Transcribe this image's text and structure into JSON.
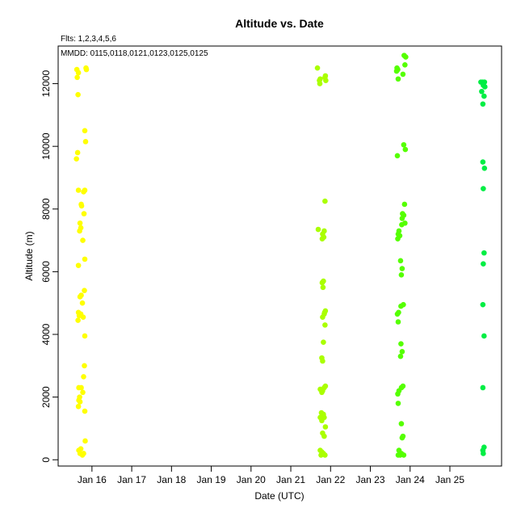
{
  "chart_data": {
    "type": "scatter",
    "title": "Altitude  vs. Date",
    "note_flts": "Flts: 1,2,3,4,5,6",
    "note_mmdd": "MMDD: 0115,0118,0121,0123,0125,0125",
    "xlabel": "Date (UTC)",
    "ylabel": "Altitude (m)",
    "x_unit": "day of January (UTC)",
    "xlim": [
      15.15,
      26.3
    ],
    "ylim": [
      -200,
      13200
    ],
    "x_ticks": [
      {
        "value": 16,
        "label": "Jan 16"
      },
      {
        "value": 17,
        "label": "Jan 17"
      },
      {
        "value": 18,
        "label": "Jan 18"
      },
      {
        "value": 19,
        "label": "Jan 19"
      },
      {
        "value": 20,
        "label": "Jan 20"
      },
      {
        "value": 21,
        "label": "Jan 21"
      },
      {
        "value": 22,
        "label": "Jan 22"
      },
      {
        "value": 23,
        "label": "Jan 23"
      },
      {
        "value": 24,
        "label": "Jan 24"
      },
      {
        "value": 25,
        "label": "Jan 25"
      }
    ],
    "y_ticks": [
      {
        "value": 0,
        "label": "0"
      },
      {
        "value": 2000,
        "label": "2000"
      },
      {
        "value": 4000,
        "label": "4000"
      },
      {
        "value": 6000,
        "label": "6000"
      },
      {
        "value": 8000,
        "label": "8000"
      },
      {
        "value": 10000,
        "label": "10000"
      },
      {
        "value": 12000,
        "label": "12000"
      }
    ],
    "grid": false,
    "series": [
      {
        "color": "#ffff00",
        "points": [
          [
            15.62,
            12450
          ],
          [
            15.66,
            12350
          ],
          [
            15.63,
            12200
          ],
          [
            15.85,
            12500
          ],
          [
            15.86,
            12450
          ],
          [
            15.65,
            11650
          ],
          [
            15.82,
            10500
          ],
          [
            15.84,
            10150
          ],
          [
            15.64,
            9800
          ],
          [
            15.61,
            9600
          ],
          [
            15.66,
            8600
          ],
          [
            15.79,
            8550
          ],
          [
            15.82,
            8600
          ],
          [
            15.73,
            8150
          ],
          [
            15.74,
            8100
          ],
          [
            15.8,
            7850
          ],
          [
            15.7,
            7550
          ],
          [
            15.72,
            7400
          ],
          [
            15.69,
            7300
          ],
          [
            15.77,
            7000
          ],
          [
            15.82,
            6400
          ],
          [
            15.66,
            6200
          ],
          [
            15.81,
            5400
          ],
          [
            15.73,
            5250
          ],
          [
            15.7,
            5200
          ],
          [
            15.76,
            5000
          ],
          [
            15.66,
            4700
          ],
          [
            15.72,
            4650
          ],
          [
            15.68,
            4600
          ],
          [
            15.78,
            4550
          ],
          [
            15.65,
            4450
          ],
          [
            15.82,
            3950
          ],
          [
            15.81,
            3000
          ],
          [
            15.79,
            2650
          ],
          [
            15.73,
            2300
          ],
          [
            15.67,
            2300
          ],
          [
            15.77,
            2150
          ],
          [
            15.69,
            2000
          ],
          [
            15.67,
            1900
          ],
          [
            15.7,
            1850
          ],
          [
            15.66,
            1700
          ],
          [
            15.82,
            1550
          ],
          [
            15.83,
            600
          ],
          [
            15.67,
            300
          ],
          [
            15.72,
            350
          ],
          [
            15.7,
            200
          ],
          [
            15.76,
            150
          ],
          [
            15.79,
            200
          ]
        ]
      },
      {
        "color": "#aaff00",
        "points": [
          [
            21.67,
            12500
          ],
          [
            21.74,
            12150
          ],
          [
            21.72,
            12100
          ],
          [
            21.73,
            12000
          ],
          [
            21.87,
            12250
          ],
          [
            21.86,
            12200
          ],
          [
            21.88,
            12100
          ],
          [
            21.86,
            8250
          ],
          [
            21.69,
            7350
          ],
          [
            21.84,
            7300
          ],
          [
            21.8,
            7200
          ],
          [
            21.83,
            7100
          ],
          [
            21.79,
            7050
          ],
          [
            21.82,
            5700
          ],
          [
            21.79,
            5650
          ],
          [
            21.81,
            5500
          ],
          [
            21.87,
            4750
          ],
          [
            21.85,
            4700
          ],
          [
            21.84,
            4650
          ],
          [
            21.8,
            4550
          ],
          [
            21.86,
            4300
          ],
          [
            21.82,
            3750
          ],
          [
            21.78,
            3250
          ],
          [
            21.8,
            3150
          ],
          [
            21.87,
            2350
          ],
          [
            21.84,
            2300
          ],
          [
            21.74,
            2250
          ],
          [
            21.8,
            2200
          ],
          [
            21.78,
            2150
          ],
          [
            21.77,
            1500
          ],
          [
            21.82,
            1450
          ],
          [
            21.74,
            1350
          ],
          [
            21.84,
            1350
          ],
          [
            21.78,
            1250
          ],
          [
            21.87,
            1050
          ],
          [
            21.8,
            850
          ],
          [
            21.84,
            750
          ],
          [
            21.74,
            300
          ],
          [
            21.78,
            250
          ],
          [
            21.82,
            200
          ],
          [
            21.76,
            150
          ],
          [
            21.86,
            150
          ]
        ]
      },
      {
        "color": "#55ff00",
        "points": [
          [
            23.85,
            12900
          ],
          [
            23.89,
            12850
          ],
          [
            23.87,
            12600
          ],
          [
            23.67,
            12500
          ],
          [
            23.69,
            12450
          ],
          [
            23.66,
            12400
          ],
          [
            23.82,
            12300
          ],
          [
            23.7,
            12150
          ],
          [
            23.84,
            10050
          ],
          [
            23.88,
            9900
          ],
          [
            23.68,
            9700
          ],
          [
            23.86,
            8150
          ],
          [
            23.81,
            7850
          ],
          [
            23.84,
            7800
          ],
          [
            23.8,
            7700
          ],
          [
            23.87,
            7550
          ],
          [
            23.79,
            7500
          ],
          [
            23.72,
            7300
          ],
          [
            23.7,
            7200
          ],
          [
            23.74,
            7150
          ],
          [
            23.69,
            7050
          ],
          [
            23.76,
            6350
          ],
          [
            23.8,
            6100
          ],
          [
            23.78,
            5900
          ],
          [
            23.83,
            4950
          ],
          [
            23.77,
            4900
          ],
          [
            23.71,
            4700
          ],
          [
            23.68,
            4650
          ],
          [
            23.7,
            4400
          ],
          [
            23.77,
            3700
          ],
          [
            23.8,
            3450
          ],
          [
            23.76,
            3300
          ],
          [
            23.82,
            2350
          ],
          [
            23.78,
            2300
          ],
          [
            23.72,
            2200
          ],
          [
            23.69,
            2100
          ],
          [
            23.7,
            1800
          ],
          [
            23.78,
            1150
          ],
          [
            23.82,
            750
          ],
          [
            23.8,
            700
          ],
          [
            23.72,
            300
          ],
          [
            23.78,
            200
          ],
          [
            23.75,
            150
          ],
          [
            23.7,
            150
          ],
          [
            23.84,
            150
          ]
        ]
      },
      {
        "color": "#00ee44",
        "points": [
          [
            25.78,
            12050
          ],
          [
            25.82,
            12050
          ],
          [
            25.87,
            12050
          ],
          [
            25.84,
            11950
          ],
          [
            25.88,
            11900
          ],
          [
            25.8,
            11750
          ],
          [
            25.86,
            11600
          ],
          [
            25.83,
            11350
          ],
          [
            25.83,
            9500
          ],
          [
            25.87,
            9300
          ],
          [
            25.84,
            8650
          ],
          [
            25.86,
            6600
          ],
          [
            25.84,
            6250
          ],
          [
            25.83,
            4950
          ],
          [
            25.86,
            3950
          ],
          [
            25.83,
            2300
          ],
          [
            25.86,
            400
          ],
          [
            25.83,
            300
          ],
          [
            25.84,
            200
          ]
        ]
      }
    ]
  }
}
